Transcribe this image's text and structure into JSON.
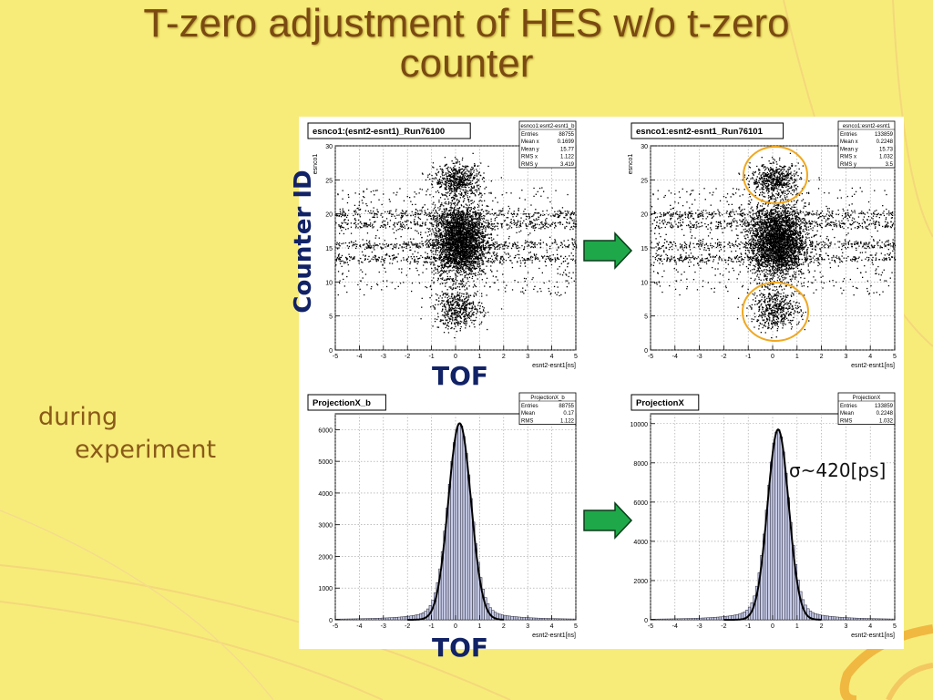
{
  "slide": {
    "title_line1": "T-zero adjustment of HES w/o t-zero",
    "title_line2": "counter",
    "side_text_line1": "during",
    "side_text_line2": "experiment",
    "label_counter_id": "Counter ID",
    "label_tof_top": "TOF",
    "label_tof_bottom": "TOF",
    "sigma_note": "σ~420[ps]"
  },
  "colors": {
    "background": "#f7ec7a",
    "title": "#7a4a12",
    "arrow": "#1fa84a",
    "circle": "#f0a820",
    "hist_fill": "#c8cce8"
  },
  "chart_data": [
    {
      "type": "scatter",
      "title": "esnco1:(esnt2-esnt1)_Run76100",
      "xlabel": "esnt2-esnt1[ns]",
      "ylabel": "esnco1",
      "xlim": [
        -5,
        5
      ],
      "ylim": [
        0,
        30
      ],
      "xticks": [
        -5,
        -4,
        -3,
        -2,
        -1,
        0,
        1,
        2,
        3,
        4,
        5
      ],
      "yticks": [
        0,
        5,
        10,
        15,
        20,
        25,
        30
      ],
      "grid": true,
      "stats": {
        "name": "esnco1:esnt2-esnt1_b",
        "rows": [
          [
            "Entries",
            "88755"
          ],
          [
            "Mean x",
            "0.1699"
          ],
          [
            "Mean y",
            "15.77"
          ],
          [
            "RMS x",
            "1.122"
          ],
          [
            "RMS y",
            "3.419"
          ]
        ]
      }
    },
    {
      "type": "scatter",
      "title": "esnco1:esnt2-esnt1_Run76101",
      "xlabel": "esnt2-esnt1[ns]",
      "ylabel": "esnco1",
      "xlim": [
        -5,
        5
      ],
      "ylim": [
        0,
        30
      ],
      "xticks": [
        -5,
        -4,
        -3,
        -2,
        -1,
        0,
        1,
        2,
        3,
        4,
        5
      ],
      "yticks": [
        0,
        5,
        10,
        15,
        20,
        25,
        30
      ],
      "grid": true,
      "stats": {
        "name": "esnco1:esnt2-esnt1",
        "rows": [
          [
            "Entries",
            "133859"
          ],
          [
            "Mean x",
            "0.2248"
          ],
          [
            "Mean y",
            "15.73"
          ],
          [
            "RMS x",
            "1.032"
          ],
          [
            "RMS y",
            "3.5"
          ]
        ]
      }
    },
    {
      "type": "bar",
      "title": "ProjectionX_b",
      "xlabel": "esnt2-esnt1[ns]",
      "ylabel": "",
      "xlim": [
        -5,
        5
      ],
      "ylim": [
        0,
        6500
      ],
      "xticks": [
        -5,
        -4,
        -3,
        -2,
        -1,
        0,
        1,
        2,
        3,
        4,
        5
      ],
      "yticks": [
        0,
        1000,
        2000,
        3000,
        4000,
        5000,
        6000
      ],
      "mean": 0.17,
      "rms": 1.122,
      "peak": 6200,
      "grid": true,
      "stats": {
        "name": "ProjectionX_b",
        "rows": [
          [
            "Entries",
            "88755"
          ],
          [
            "Mean",
            "0.17"
          ],
          [
            "RMS",
            "1.122"
          ]
        ]
      }
    },
    {
      "type": "bar",
      "title": "ProjectionX",
      "xlabel": "esnt2-esnt1[ns]",
      "ylabel": "",
      "xlim": [
        -5,
        5
      ],
      "ylim": [
        0,
        10500
      ],
      "xticks": [
        -5,
        -4,
        -3,
        -2,
        -1,
        0,
        1,
        2,
        3,
        4,
        5
      ],
      "yticks": [
        0,
        2000,
        4000,
        6000,
        8000,
        10000
      ],
      "mean": 0.2248,
      "rms": 1.032,
      "peak": 9700,
      "grid": true,
      "stats": {
        "name": "ProjectionX",
        "rows": [
          [
            "Entries",
            "133859"
          ],
          [
            "Mean",
            "0.2248"
          ],
          [
            "RMS",
            "1.032"
          ]
        ]
      }
    }
  ]
}
